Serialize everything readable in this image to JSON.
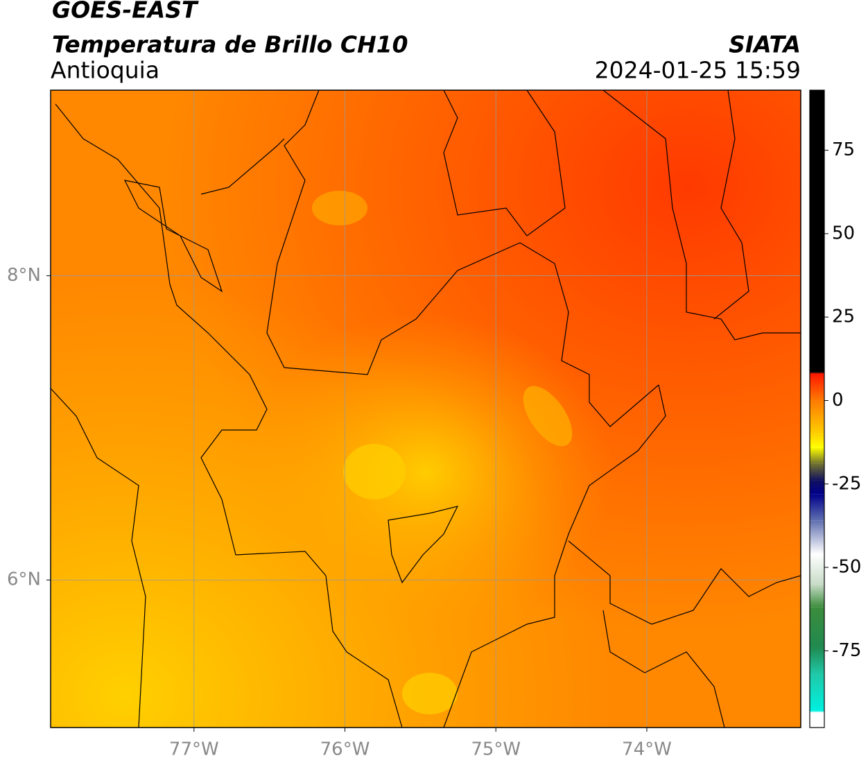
{
  "header": {
    "title": "GOES-EAST",
    "subtitle": "Temperatura de Brillo CH10",
    "region": "Antioquia",
    "source": "SIATA",
    "timestamp": "2024-01-25 15:59"
  },
  "map": {
    "xlim": [
      -77.95,
      -72.98
    ],
    "ylim": [
      5.03,
      9.22
    ],
    "xticks": [
      {
        "value": -77,
        "label": "77°W"
      },
      {
        "value": -76,
        "label": "76°W"
      },
      {
        "value": -75,
        "label": "75°W"
      },
      {
        "value": -74,
        "label": "74°W"
      }
    ],
    "yticks": [
      {
        "value": 6,
        "label": "6°N"
      },
      {
        "value": 8,
        "label": "8°N"
      }
    ],
    "grid": true
  },
  "colorbar": {
    "lim": [
      -98,
      93
    ],
    "ticks": [
      -75,
      -50,
      -25,
      0,
      25,
      50,
      75
    ],
    "stops": [
      {
        "value": 93,
        "color": "#000000"
      },
      {
        "value": 8.5,
        "color": "#000000"
      },
      {
        "value": 8,
        "color": "#ff1800"
      },
      {
        "value": 0,
        "color": "#ff7a00"
      },
      {
        "value": -10,
        "color": "#ffd000"
      },
      {
        "value": -14,
        "color": "#ffff00"
      },
      {
        "value": -19,
        "color": "#707030"
      },
      {
        "value": -24,
        "color": "#101060"
      },
      {
        "value": -28,
        "color": "#00008a"
      },
      {
        "value": -36,
        "color": "#6070b0"
      },
      {
        "value": -46,
        "color": "#ffffff"
      },
      {
        "value": -55,
        "color": "#c8dcc8"
      },
      {
        "value": -62,
        "color": "#3c8c3c"
      },
      {
        "value": -74,
        "color": "#208a50"
      },
      {
        "value": -82,
        "color": "#20c8a8"
      },
      {
        "value": -93,
        "color": "#00f0e0"
      },
      {
        "value": -93.5,
        "color": "#ffffff"
      },
      {
        "value": -98,
        "color": "#ffffff"
      }
    ]
  }
}
